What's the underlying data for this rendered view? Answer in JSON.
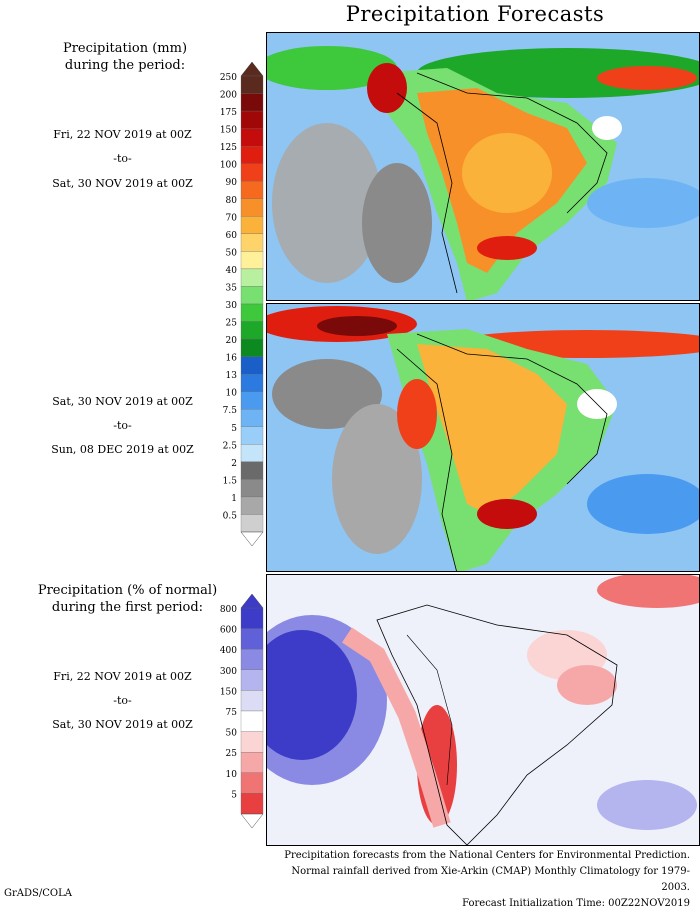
{
  "title": "Precipitation Forecasts",
  "panel_label_top": {
    "line1": "Precipitation (mm)",
    "line2": "during the period:"
  },
  "period1": {
    "start": "Fri, 22 NOV 2019 at 00Z",
    "to": "-to-",
    "end": "Sat, 30 NOV 2019 at 00Z"
  },
  "period2": {
    "start": "Sat, 30 NOV 2019 at 00Z",
    "to": "-to-",
    "end": "Sun, 08 DEC 2019 at 00Z"
  },
  "panel_label_bottom": {
    "line1": "Precipitation (% of normal)",
    "line2": "during the first period:"
  },
  "period3": {
    "start": "Fri, 22 NOV 2019 at 00Z",
    "to": "-to-",
    "end": "Sat, 30 NOV 2019 at 00Z"
  },
  "precip_scale": {
    "labels": [
      "250",
      "200",
      "175",
      "150",
      "125",
      "100",
      "90",
      "80",
      "70",
      "60",
      "50",
      "40",
      "35",
      "30",
      "25",
      "20",
      "16",
      "13",
      "10",
      "7.5",
      "5",
      "2.5",
      "2",
      "1.5",
      "1",
      "0.5"
    ],
    "colors": [
      "#5a2a1e",
      "#7a0a0a",
      "#a00808",
      "#c40c0c",
      "#e01e10",
      "#f0401a",
      "#f56a1e",
      "#f8902a",
      "#fbb23a",
      "#fed36a",
      "#fff09a",
      "#b8f0a0",
      "#78e070",
      "#3ec83c",
      "#1ea82a",
      "#0c8a20",
      "#1a5fc8",
      "#2b7ae0",
      "#4a9af0",
      "#6eb4f4",
      "#98cef8",
      "#c4e4fa",
      "#6a6a6a",
      "#8a8a8a",
      "#a8a8a8",
      "#cfcfcf"
    ]
  },
  "pct_scale": {
    "labels": [
      "800",
      "600",
      "400",
      "300",
      "150",
      "75",
      "50",
      "25",
      "10",
      "5"
    ],
    "colors": [
      "#3c3cc8",
      "#6060d8",
      "#8a8ae4",
      "#b4b4ee",
      "#dcdcf6",
      "#ffffff",
      "#fbd4d4",
      "#f6a8a8",
      "#f07474",
      "#e84040"
    ]
  },
  "footer": {
    "line1": "Precipitation forecasts from the National Centers for Environmental Prediction.",
    "line2": "Normal rainfall derived from Xie-Arkin (CMAP) Monthly Climatology for 1979-2003.",
    "line3": "Forecast Initialization Time: 00Z22NOV2019"
  },
  "credit": "GrADS/COLA"
}
